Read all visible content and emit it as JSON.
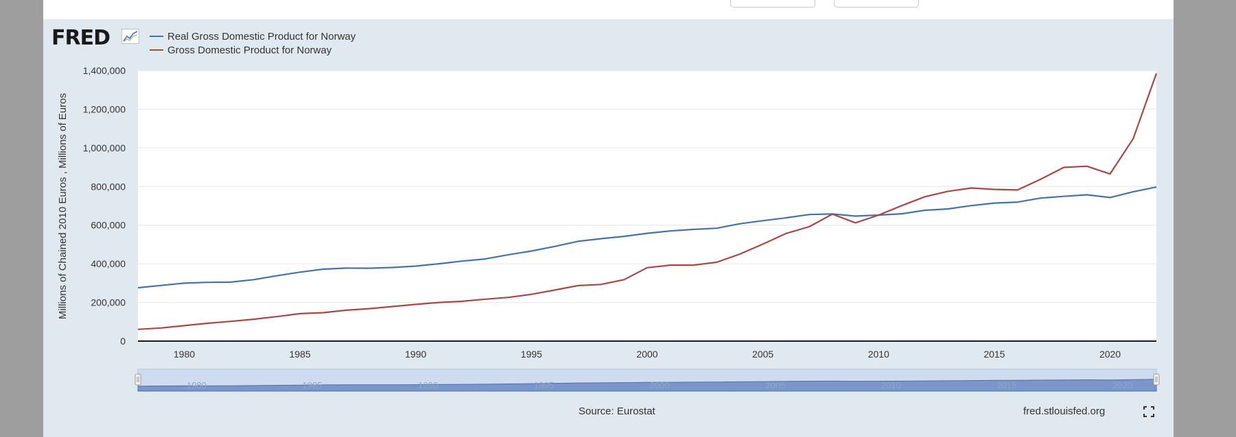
{
  "header": {
    "brand": "FRED"
  },
  "icons": {
    "logo_graph": "line-graph-icon",
    "fullscreen": "fullscreen-icon"
  },
  "colors": {
    "series1": "#4572a7",
    "series2": "#aa4643",
    "plot_bg": "#ffffff",
    "frame_bg": "#e1e9f0",
    "navigator_fill": "#6685c2"
  },
  "footer": {
    "source": "Source: Eurostat",
    "site": "fred.stlouisfed.org"
  },
  "chart_data": {
    "type": "line",
    "title": "",
    "xlabel": "",
    "ylabel": "Millions of Chained 2010 Euros , Millions of Euros",
    "xlim": [
      1978,
      2022
    ],
    "ylim": [
      0,
      1400000
    ],
    "x_ticks": [
      1980,
      1985,
      1990,
      1995,
      2000,
      2005,
      2010,
      2015,
      2020
    ],
    "y_ticks": [
      "0",
      "200,000",
      "400,000",
      "600,000",
      "800,000",
      "1,000,000",
      "1,200,000",
      "1,400,000"
    ],
    "y_tick_values": [
      0,
      200000,
      400000,
      600000,
      800000,
      1000000,
      1200000,
      1400000
    ],
    "legend_position": "top-left",
    "x": [
      1978,
      1979,
      1980,
      1981,
      1982,
      1983,
      1984,
      1985,
      1986,
      1987,
      1988,
      1989,
      1990,
      1991,
      1992,
      1993,
      1994,
      1995,
      1996,
      1997,
      1998,
      1999,
      2000,
      2001,
      2002,
      2003,
      2004,
      2005,
      2006,
      2007,
      2008,
      2009,
      2010,
      2011,
      2012,
      2013,
      2014,
      2015,
      2016,
      2017,
      2018,
      2019,
      2020,
      2021,
      2022
    ],
    "series": [
      {
        "name": "Real Gross Domestic Product for Norway",
        "values": [
          276000,
          288000,
          300000,
          304000,
          305000,
          318000,
          338000,
          357000,
          372000,
          378000,
          377000,
          381000,
          388000,
          400000,
          414000,
          425000,
          447000,
          466000,
          490000,
          516000,
          530000,
          542000,
          558000,
          570000,
          578000,
          584000,
          607000,
          623000,
          638000,
          655000,
          658000,
          647000,
          652000,
          659000,
          677000,
          684000,
          701000,
          714000,
          719000,
          740000,
          749000,
          757000,
          743000,
          773000,
          797000
        ]
      },
      {
        "name": "Gross Domestic Product for Norway",
        "values": [
          61000,
          68000,
          80000,
          92000,
          102000,
          113000,
          127000,
          142000,
          147000,
          160000,
          168000,
          179000,
          190000,
          200000,
          206000,
          217000,
          226000,
          242000,
          264000,
          287000,
          293000,
          318000,
          380000,
          393000,
          393000,
          408000,
          450000,
          502000,
          557000,
          592000,
          657000,
          612000,
          652000,
          701000,
          747000,
          775000,
          792000,
          785000,
          782000,
          838000,
          899000,
          905000,
          865000,
          1048000,
          1385000
        ]
      }
    ],
    "navigator": {
      "x_labels": [
        "1980",
        "1985",
        "1990",
        "1995",
        "2000",
        "2005",
        "2010",
        "2015",
        "2020"
      ]
    }
  }
}
